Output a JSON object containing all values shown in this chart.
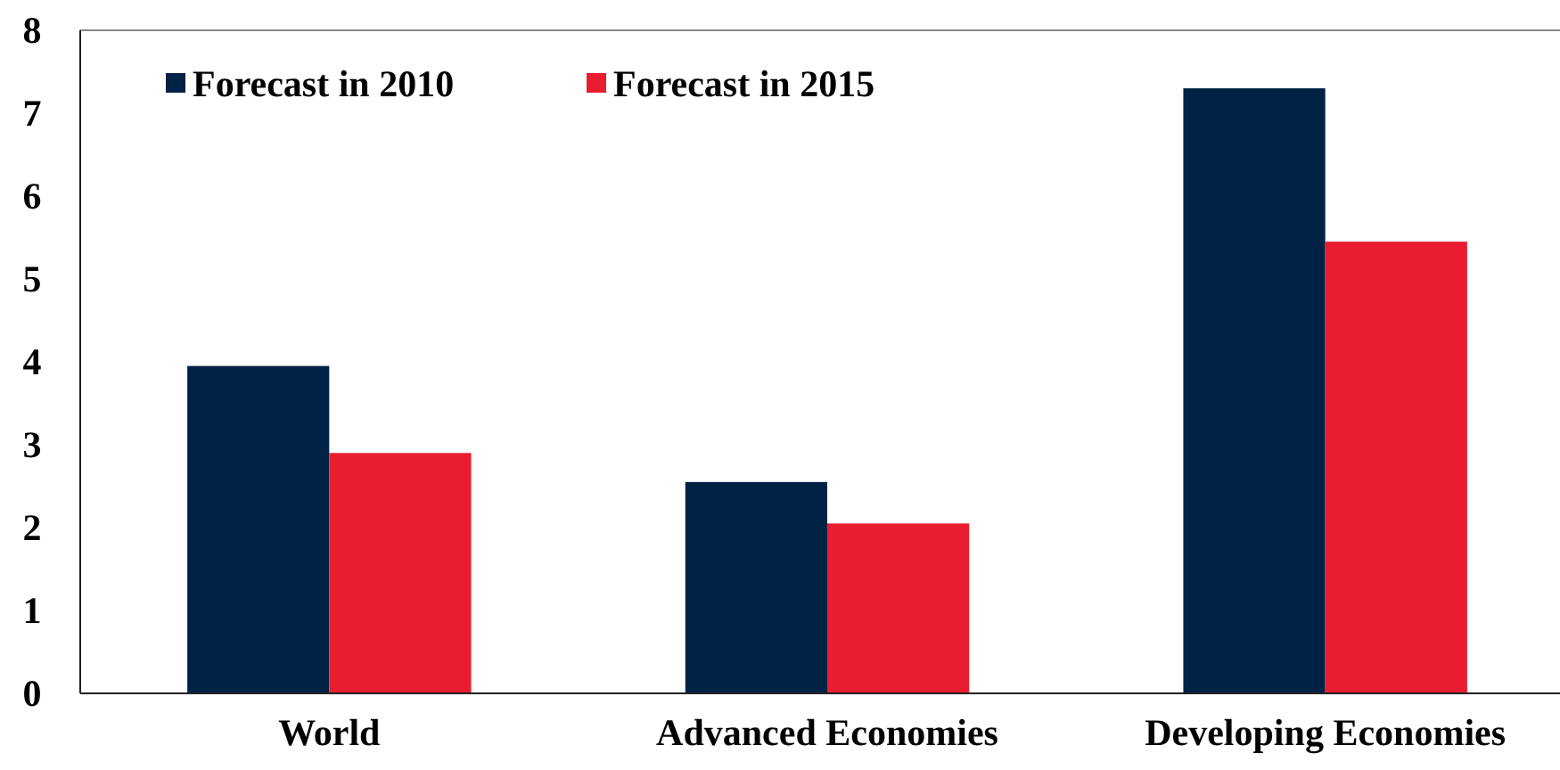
{
  "chart_data": {
    "type": "bar",
    "categories": [
      "World",
      "Advanced Economies",
      "Developing Economies"
    ],
    "series": [
      {
        "name": "Forecast in 2010",
        "color": "#002244",
        "values": [
          3.95,
          2.55,
          7.3
        ]
      },
      {
        "name": "Forecast in 2015",
        "color": "#e81e30",
        "values": [
          2.9,
          2.05,
          5.45
        ]
      }
    ],
    "ylim": [
      0,
      8
    ],
    "yticks": [
      0,
      1,
      2,
      3,
      4,
      5,
      6,
      7,
      8
    ],
    "legend": "top left",
    "grid": false
  }
}
